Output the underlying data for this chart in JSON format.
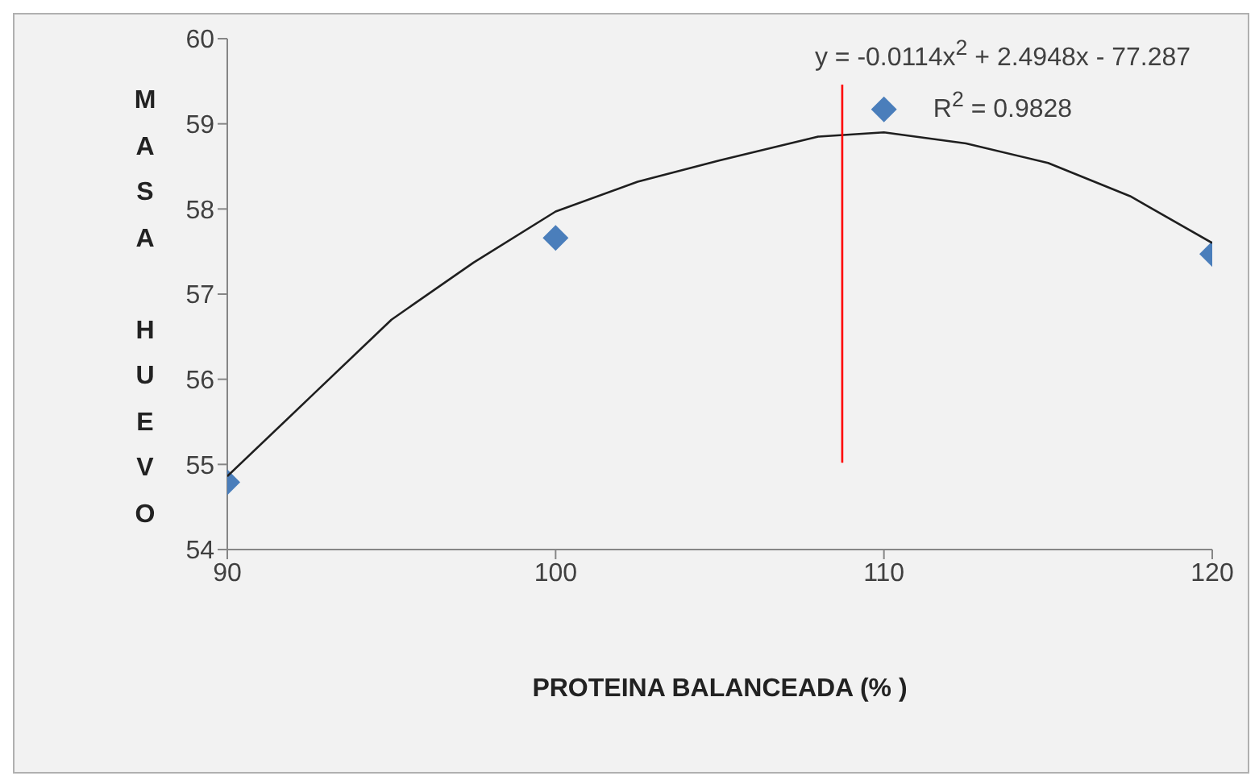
{
  "chart_data": {
    "type": "scatter",
    "xlabel": "PROTEINA BALANCEADA (% )",
    "ylabel": "MASA HUEVO",
    "annotations": [
      "y = -0.0114x$^{2}$ + 2.4948x - 77.287",
      "R$^{2}$ = 0.9828"
    ],
    "xlim": [
      90,
      120
    ],
    "xticks": [
      90,
      100,
      110,
      120
    ],
    "ylim": [
      54,
      60
    ],
    "yticks": [
      54,
      55,
      56,
      57,
      58,
      59,
      60
    ],
    "grid": false,
    "series": [
      {
        "color": "#4a7ebb",
        "marker": "diamond",
        "x": [
          90,
          100,
          110,
          120
        ],
        "values": [
          54.79,
          57.66,
          59.17,
          57.47
        ]
      },
      {
        "type": "line",
        "color": "#1f1f1f",
        "x": [
          90,
          92.5,
          95,
          97.5,
          100,
          102.5,
          105,
          108,
          110,
          112.5,
          115,
          117.5,
          120
        ],
        "values": [
          54.86,
          55.78,
          56.7,
          57.37,
          57.97,
          58.32,
          58.57,
          58.85,
          58.9,
          58.77,
          58.54,
          58.15,
          57.6
        ]
      },
      {
        "type": "line",
        "color": "#ff0000",
        "x": [
          108.73,
          108.73
        ],
        "values": [
          55.02,
          59.46
        ]
      }
    ]
  }
}
